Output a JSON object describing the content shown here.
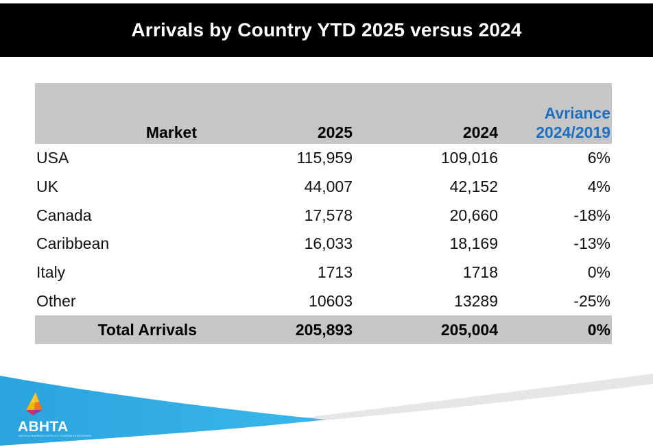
{
  "title": "Arrivals by Country YTD 2025 versus 2024",
  "table": {
    "headers": {
      "market": "Market",
      "col2025": "2025",
      "col2024": "2024",
      "variance_line1": "Avriance",
      "variance_line2": "2024/2019"
    },
    "rows": [
      {
        "market": "USA",
        "v2025": "115,959",
        "v2024": "109,016",
        "variance": "6%"
      },
      {
        "market": "UK",
        "v2025": "44,007",
        "v2024": "42,152",
        "variance": "4%"
      },
      {
        "market": "Canada",
        "v2025": "17,578",
        "v2024": "20,660",
        "variance": "-18%"
      },
      {
        "market": "Caribbean",
        "v2025": "16,033",
        "v2024": "18,169",
        "variance": "-13%"
      },
      {
        "market": "Italy",
        "v2025": "1713",
        "v2024": "1718",
        "variance": "0%"
      },
      {
        "market": "Other",
        "v2025": "10603",
        "v2024": "13289",
        "variance": "-25%"
      }
    ],
    "total": {
      "market": "Total Arrivals",
      "v2025": "205,893",
      "v2024": "205,004",
      "variance": "0%"
    }
  },
  "logo": {
    "name": "ABHTA",
    "subtitle": "ANTIGUA BARBUDA HOTELS & TOURISM ASSOCIATION"
  },
  "colors": {
    "title_bg": "#000000",
    "header_bg": "#c6c6c6",
    "positive": "#1f6fc0",
    "negative": "#e01b1b",
    "accent_blue": "#29a8e0"
  }
}
